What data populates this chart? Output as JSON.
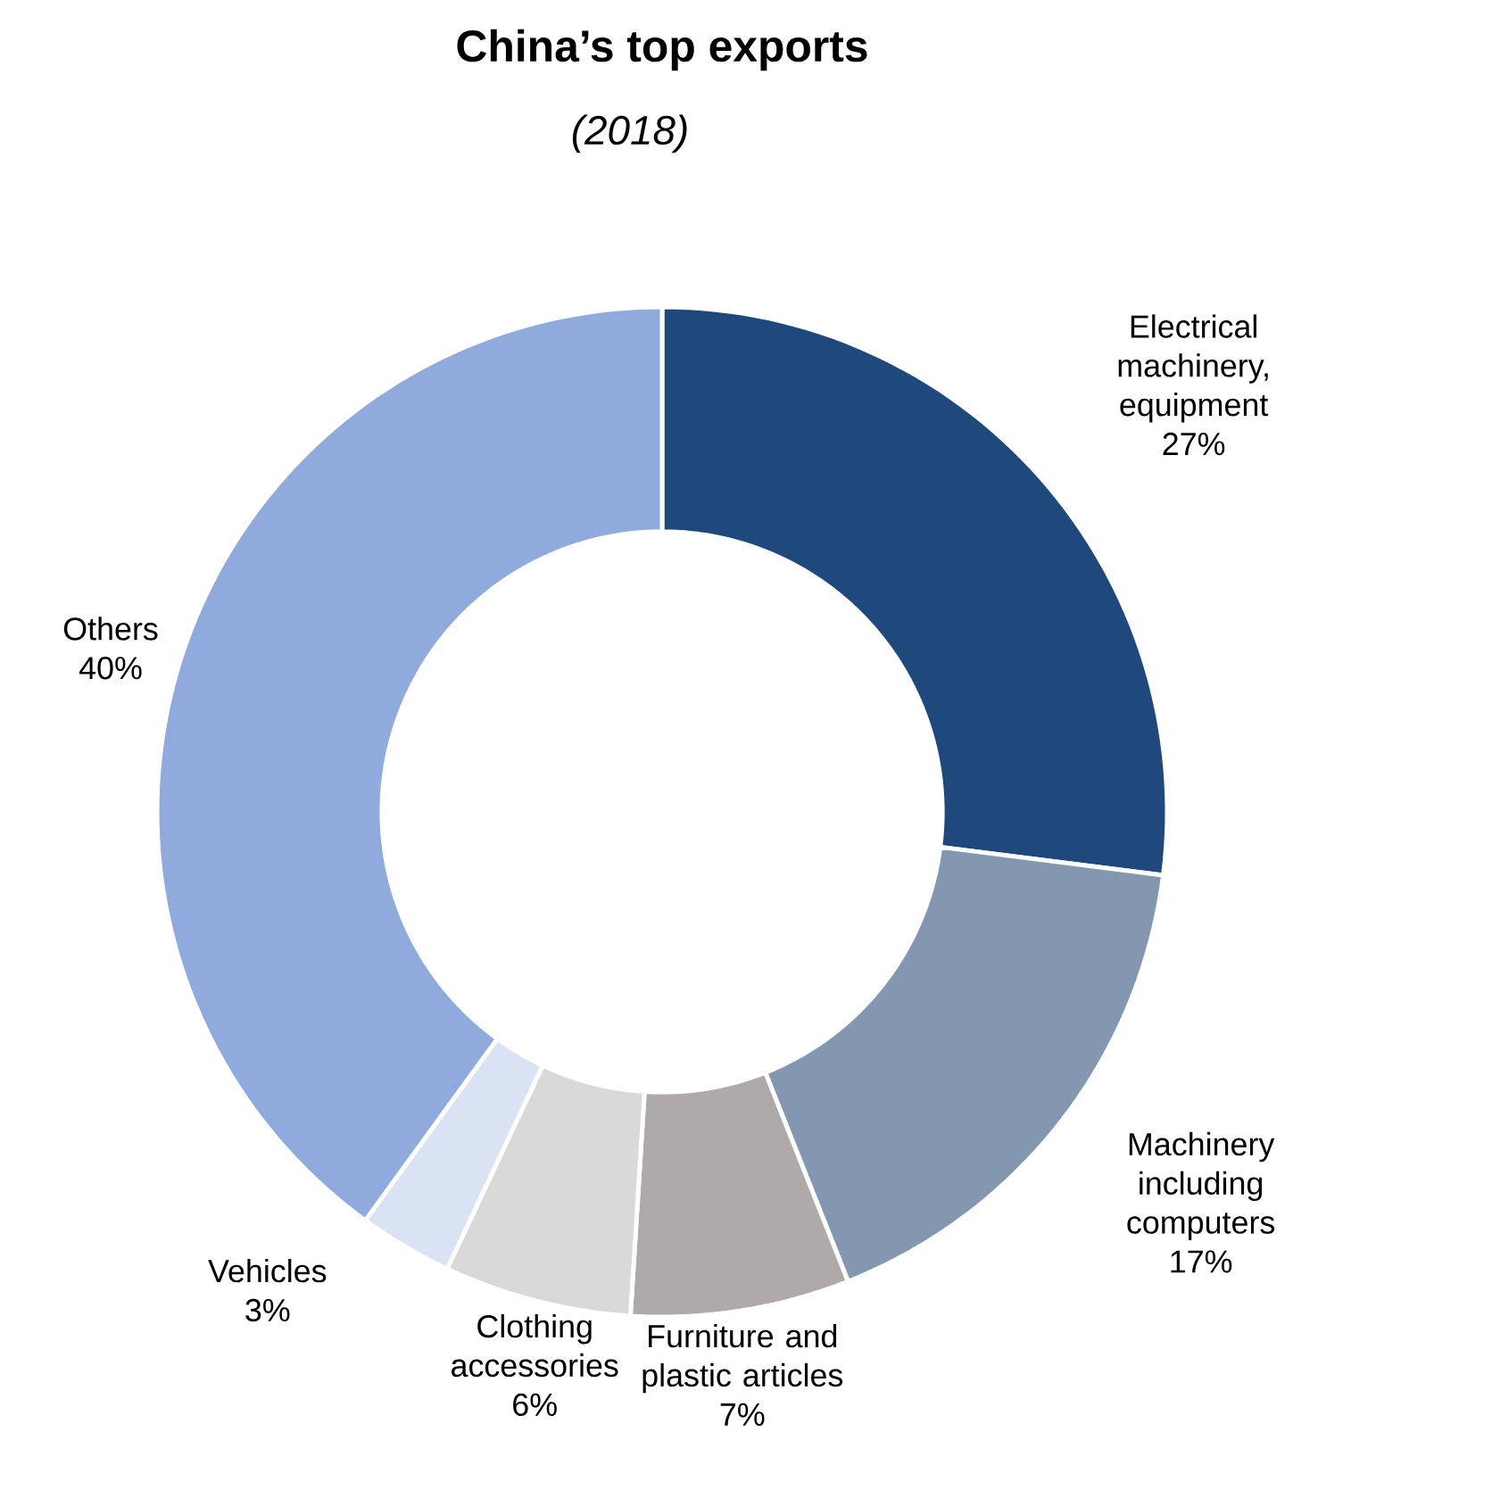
{
  "chart_data": {
    "type": "donut",
    "title": "China’s top exports",
    "subtitle": "(2018)",
    "categories": [
      "Electrical machinery, equipment",
      "Machinery including computers",
      "Furniture and plastic articles",
      "Clothing accessories",
      "Vehicles",
      "Others"
    ],
    "values": [
      27,
      17,
      7,
      6,
      3,
      40
    ],
    "value_labels": [
      "27%",
      "17%",
      "7%",
      "6%",
      "3%",
      "40%"
    ],
    "colors": [
      "#1f497d",
      "#8497b0",
      "#aeaaaa",
      "#d9d9d9",
      "#dae3f3",
      "#8faadc"
    ]
  }
}
